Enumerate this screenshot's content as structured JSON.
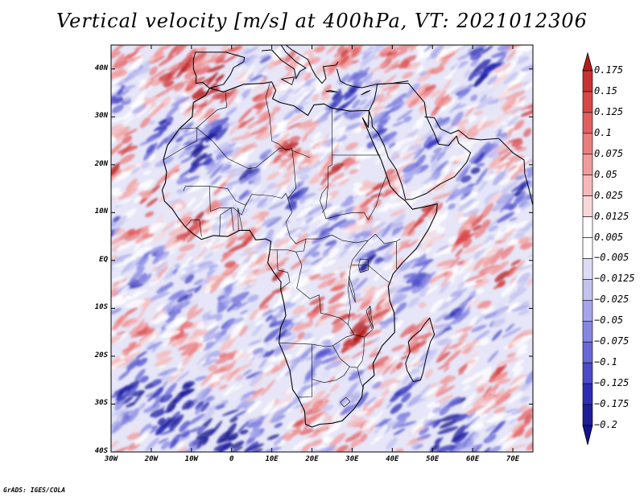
{
  "title": "Vertical velocity [m/s] at 400hPa, VT: 2021012306",
  "credit": "GrADS: IGES/COLA",
  "map": {
    "lon_range": [
      -30,
      75
    ],
    "lat_range": [
      -40,
      45
    ],
    "lon_ticks": [
      {
        "value": -30,
        "label": "30W"
      },
      {
        "value": -20,
        "label": "20W"
      },
      {
        "value": -10,
        "label": "10W"
      },
      {
        "value": 0,
        "label": "0"
      },
      {
        "value": 10,
        "label": "10E"
      },
      {
        "value": 20,
        "label": "20E"
      },
      {
        "value": 30,
        "label": "30E"
      },
      {
        "value": 40,
        "label": "40E"
      },
      {
        "value": 50,
        "label": "50E"
      },
      {
        "value": 60,
        "label": "60E"
      },
      {
        "value": 70,
        "label": "70E"
      }
    ],
    "lat_ticks": [
      {
        "value": 40,
        "label": "40N"
      },
      {
        "value": 30,
        "label": "30N"
      },
      {
        "value": 20,
        "label": "20N"
      },
      {
        "value": 10,
        "label": "10N"
      },
      {
        "value": 0,
        "label": "EQ"
      },
      {
        "value": -10,
        "label": "10S"
      },
      {
        "value": -20,
        "label": "20S"
      },
      {
        "value": -30,
        "label": "30S"
      },
      {
        "value": -40,
        "label": "40S"
      }
    ]
  },
  "colorbar": {
    "levels": [
      "0.175",
      "0.15",
      "0.125",
      "0.1",
      "0.075",
      "0.05",
      "0.025",
      "0.0125",
      "0.005",
      "−0.005",
      "−0.0125",
      "−0.025",
      "−0.05",
      "−0.075",
      "−0.1",
      "−0.125",
      "−0.175",
      "−0.2"
    ],
    "colors": [
      "#b41e1e",
      "#c83232",
      "#d74646",
      "#e15f5f",
      "#eb7d7d",
      "#f09b9b",
      "#f5b9b9",
      "#fad7d7",
      "#ffffff",
      "#ffffff",
      "#dcdcf5",
      "#c3c3f0",
      "#a5a5eb",
      "#8787e1",
      "#6969d7",
      "#4b4bc8",
      "#2d2db4",
      "#1e1e96",
      "#14148c"
    ]
  }
}
